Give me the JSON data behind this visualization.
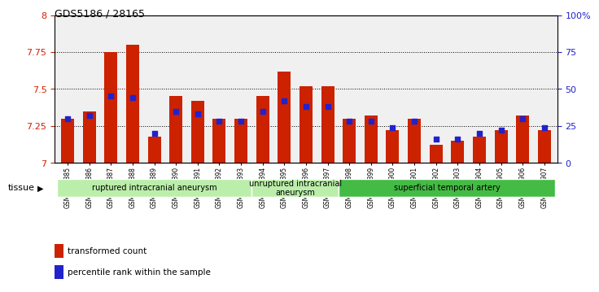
{
  "title": "GDS5186 / 28165",
  "samples": [
    "GSM1306885",
    "GSM1306886",
    "GSM1306887",
    "GSM1306888",
    "GSM1306889",
    "GSM1306890",
    "GSM1306891",
    "GSM1306892",
    "GSM1306893",
    "GSM1306894",
    "GSM1306895",
    "GSM1306896",
    "GSM1306897",
    "GSM1306898",
    "GSM1306899",
    "GSM1306900",
    "GSM1306901",
    "GSM1306902",
    "GSM1306903",
    "GSM1306904",
    "GSM1306905",
    "GSM1306906",
    "GSM1306907"
  ],
  "red_values": [
    7.3,
    7.35,
    7.75,
    7.8,
    7.18,
    7.45,
    7.42,
    7.3,
    7.3,
    7.45,
    7.62,
    7.52,
    7.52,
    7.3,
    7.32,
    7.22,
    7.3,
    7.12,
    7.15,
    7.18,
    7.22,
    7.32,
    7.22
  ],
  "blue_values": [
    30,
    32,
    45,
    44,
    20,
    35,
    33,
    28,
    28,
    35,
    42,
    38,
    38,
    28,
    28,
    24,
    28,
    16,
    16,
    20,
    22,
    30,
    24
  ],
  "ylim_left": [
    7.0,
    8.0
  ],
  "ylim_right": [
    0,
    100
  ],
  "yticks_left": [
    7.0,
    7.25,
    7.5,
    7.75,
    8.0
  ],
  "ytick_labels_left": [
    "7",
    "7.25",
    "7.5",
    "7.75",
    "8"
  ],
  "yticks_right": [
    0,
    25,
    50,
    75,
    100
  ],
  "ytick_labels_right": [
    "0",
    "25",
    "50",
    "75",
    "100%"
  ],
  "groups_config": [
    {
      "label": "ruptured intracranial aneurysm",
      "start": 0,
      "end": 8,
      "color": "#bbeeaa"
    },
    {
      "label": "unruptured intracranial\naneurysm",
      "start": 9,
      "end": 12,
      "color": "#bbeeaa"
    },
    {
      "label": "superficial temporal artery",
      "start": 13,
      "end": 22,
      "color": "#44bb44"
    }
  ],
  "tissue_label": "tissue",
  "legend_red": "transformed count",
  "legend_blue": "percentile rank within the sample",
  "bar_color": "#cc2200",
  "dot_color": "#2222cc",
  "background_color": "#f0f0f0",
  "grid_color": "black",
  "left_tick_color": "#cc2200",
  "right_tick_color": "#2222cc",
  "bar_width": 0.6,
  "dot_size": 22
}
